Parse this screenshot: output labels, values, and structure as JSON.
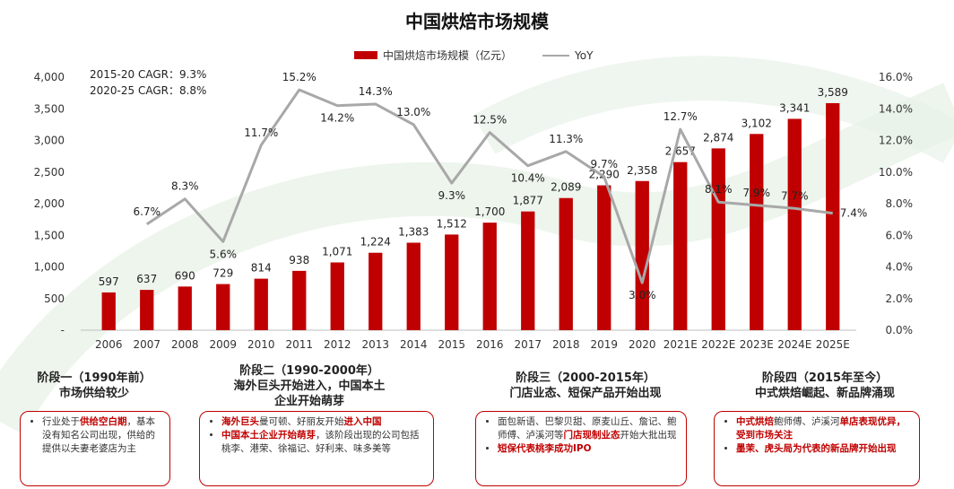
{
  "chart_data": {
    "type": "bar+line",
    "title": "中国烘焙市场规模",
    "categories": [
      "2006",
      "2007",
      "2008",
      "2009",
      "2010",
      "2011",
      "2012",
      "2013",
      "2014",
      "2015",
      "2016",
      "2017",
      "2018",
      "2019",
      "2020",
      "2021E",
      "2022E",
      "2023E",
      "2024E",
      "2025E"
    ],
    "series": [
      {
        "name": "中国烘焙市场规模（亿元）",
        "type": "bar",
        "axis": "left",
        "color": "#c00000",
        "values": [
          597,
          637,
          690,
          729,
          814,
          938,
          1071,
          1224,
          1383,
          1512,
          1700,
          1877,
          2089,
          2290,
          2358,
          2657,
          2874,
          3102,
          3341,
          3589
        ],
        "labels": [
          "597",
          "637",
          "690",
          "729",
          "814",
          "938",
          "1,071",
          "1,224",
          "1,383",
          "1,512",
          "1,700",
          "1,877",
          "2,089",
          "2,290",
          "2,358",
          "2,657",
          "2,874",
          "3,102",
          "3,341",
          "3,589"
        ]
      },
      {
        "name": "YoY",
        "type": "line",
        "axis": "right",
        "color": "#a8a8a8",
        "values": [
          null,
          6.7,
          8.3,
          5.6,
          11.7,
          15.2,
          14.2,
          14.3,
          13.0,
          9.3,
          12.5,
          10.4,
          11.3,
          9.7,
          3.0,
          12.7,
          8.1,
          7.9,
          7.7,
          7.4
        ],
        "labels": [
          "",
          "6.7%",
          "8.3%",
          "5.6%",
          "11.7%",
          "15.2%",
          "14.2%",
          "14.3%",
          "13.0%",
          "9.3%",
          "12.5%",
          "10.4%",
          "11.3%",
          "9.7%",
          "3.0%",
          "12.7%",
          "8.1%",
          "7.9%",
          "7.7%",
          "7.4%"
        ]
      }
    ],
    "y_left": {
      "min": 0,
      "max": 4000,
      "ticks": [
        "-",
        "500",
        "1,000",
        "1,500",
        "2,000",
        "2,500",
        "3,000",
        "3,500",
        "4,000"
      ]
    },
    "y_right": {
      "min": 0,
      "max": 16,
      "ticks": [
        "0.0%",
        "2.0%",
        "4.0%",
        "6.0%",
        "8.0%",
        "10.0%",
        "12.0%",
        "14.0%",
        "16.0%"
      ]
    },
    "legend_position": "top-center",
    "grid": false,
    "annotations": [
      "2015-20 CAGR：9.3%",
      "2020-25 CAGR：8.8%"
    ]
  },
  "stages": [
    {
      "title_lines": [
        "阶段一（1990年前）",
        "市场供给较少"
      ],
      "bullets": [
        [
          {
            "t": "行业处于"
          },
          {
            "t": "供给空白期",
            "red": true
          },
          {
            "t": "，基本没有知名公司出现，供给的提供以夫妻老婆店为主"
          }
        ]
      ]
    },
    {
      "title_lines": [
        "阶段二（1990-2000年）",
        "海外巨头开始进入，中国本土",
        "企业开始萌芽"
      ],
      "bullets": [
        [
          {
            "t": "海外巨头",
            "red": true
          },
          {
            "t": "曼可顿、好丽友开始"
          },
          {
            "t": "进入中国",
            "red": true
          }
        ],
        [
          {
            "t": "中国本土企业开始萌芽",
            "red": true
          },
          {
            "t": "，该阶段出现的公司包括桃李、港荣、徐福记、好利来、味多美等"
          }
        ]
      ]
    },
    {
      "title_lines": [
        "阶段三（2000-2015年）",
        "门店业态、短保产品开始出现"
      ],
      "bullets": [
        [
          {
            "t": "面包新语、巴黎贝甜、原麦山丘、詹记、鲍师傅、泸溪河等"
          },
          {
            "t": "门店现制业态",
            "red": true
          },
          {
            "t": "开始大批出现"
          }
        ],
        [
          {
            "t": "短保代表桃李成功IPO",
            "red": true
          }
        ]
      ]
    },
    {
      "title_lines": [
        "阶段四（2015年至今）",
        "中式烘焙崛起、新品牌涌现"
      ],
      "bullets": [
        [
          {
            "t": "中式烘焙",
            "red": true
          },
          {
            "t": "鲍师傅、泸溪河"
          },
          {
            "t": "单店表现优异，受到市场关注",
            "red": true
          }
        ],
        [
          {
            "t": "墨茉、虎头局为代表的新品牌开始出现",
            "red": true
          }
        ]
      ]
    }
  ]
}
